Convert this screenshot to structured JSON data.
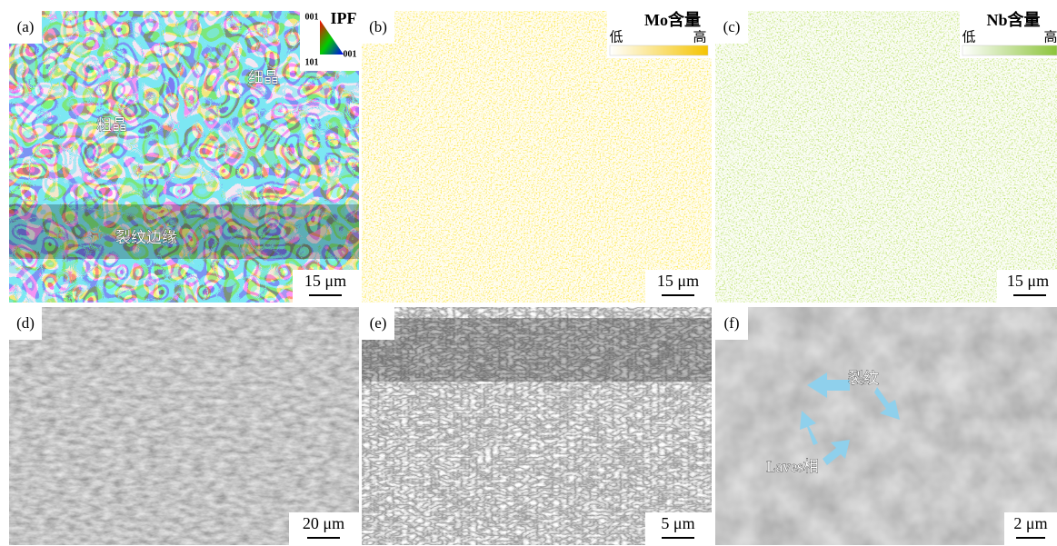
{
  "panels": [
    {
      "label": "(a)",
      "scale_bar": "15 μm",
      "legend": {
        "title": "IPF",
        "corners": [
          "001",
          "101",
          "001"
        ]
      },
      "annotations": [
        "细晶",
        "粗晶",
        "裂纹边缘"
      ]
    },
    {
      "label": "(b)",
      "scale_bar": "15 μm",
      "colorbar": {
        "title": "Mo含量",
        "low": "低",
        "high": "高"
      }
    },
    {
      "label": "(c)",
      "scale_bar": "15 μm",
      "colorbar": {
        "title": "Nb含量",
        "low": "低",
        "high": "高"
      }
    },
    {
      "label": "(d)",
      "scale_bar": "20 μm"
    },
    {
      "label": "(e)",
      "scale_bar": "5 μm"
    },
    {
      "label": "(f)",
      "scale_bar": "2 μm",
      "annotations": [
        "裂纹",
        "Laves相"
      ]
    }
  ]
}
